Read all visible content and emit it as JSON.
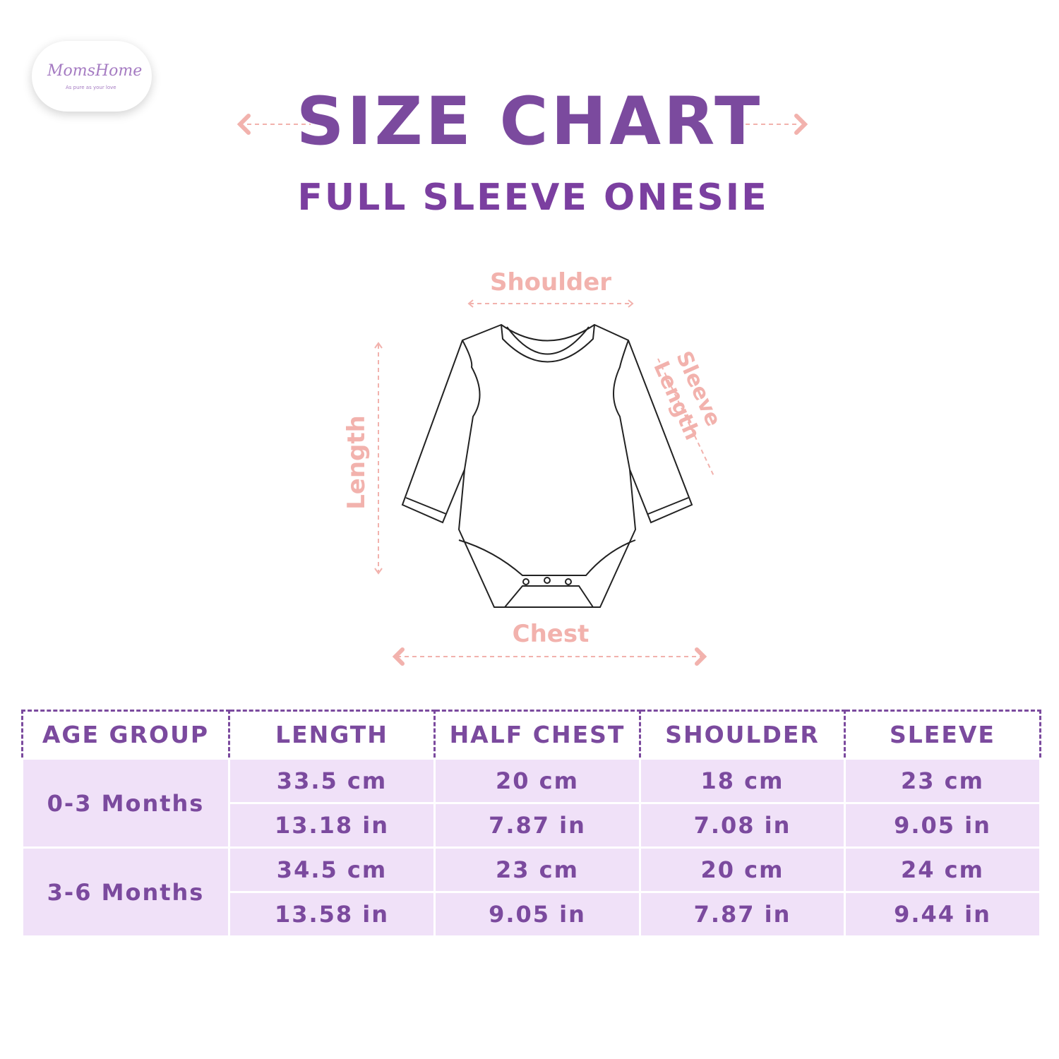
{
  "logo": {
    "brand": "MomsHome",
    "tagline": "As pure as your love"
  },
  "title": "SIZE CHART",
  "subtitle": "FULL SLEEVE ONESIE",
  "diagram": {
    "shoulder": "Shoulder",
    "length": "Length",
    "sleeve": "Sleeve Length",
    "chest": "Chest"
  },
  "colors": {
    "primary": "#7b4a9e",
    "accent": "#f2b2ad",
    "row_bg": "#f0e1f8"
  },
  "table": {
    "headers": [
      "AGE GROUP",
      "LENGTH",
      "HALF CHEST",
      "SHOULDER",
      "SLEEVE"
    ],
    "rows": [
      {
        "age": "0-3 Months",
        "cm": [
          "33.5 cm",
          "20 cm",
          "18 cm",
          "23 cm"
        ],
        "in": [
          "13.18 in",
          "7.87 in",
          "7.08 in",
          "9.05 in"
        ]
      },
      {
        "age": "3-6 Months",
        "cm": [
          "34.5 cm",
          "23 cm",
          "20 cm",
          "24 cm"
        ],
        "in": [
          "13.58 in",
          "9.05 in",
          "7.87 in",
          "9.44 in"
        ]
      }
    ]
  }
}
